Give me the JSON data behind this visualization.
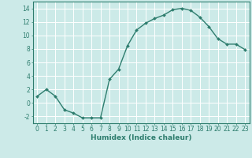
{
  "x": [
    0,
    1,
    2,
    3,
    4,
    5,
    6,
    7,
    8,
    9,
    10,
    11,
    12,
    13,
    14,
    15,
    16,
    17,
    18,
    19,
    20,
    21,
    22,
    23
  ],
  "y": [
    1,
    2,
    1,
    -1,
    -1.5,
    -2.2,
    -2.2,
    -2.2,
    3.5,
    5,
    8.5,
    10.8,
    11.8,
    12.5,
    13.0,
    13.8,
    14.0,
    13.7,
    12.7,
    11.3,
    9.5,
    8.7,
    8.7,
    7.9
  ],
  "line_color": "#2e7d6e",
  "marker": "D",
  "marker_size": 2.0,
  "bg_color": "#cceae8",
  "grid_color": "#ffffff",
  "axis_color": "#2e7d6e",
  "tick_color": "#2e7d6e",
  "xlabel": "Humidex (Indice chaleur)",
  "xlabel_fontsize": 6.5,
  "xlabel_color": "#2e7d6e",
  "ylim": [
    -3,
    15
  ],
  "xlim": [
    -0.5,
    23.5
  ],
  "yticks": [
    -2,
    0,
    2,
    4,
    6,
    8,
    10,
    12,
    14
  ],
  "tick_fontsize": 5.5,
  "line_width": 1.0
}
